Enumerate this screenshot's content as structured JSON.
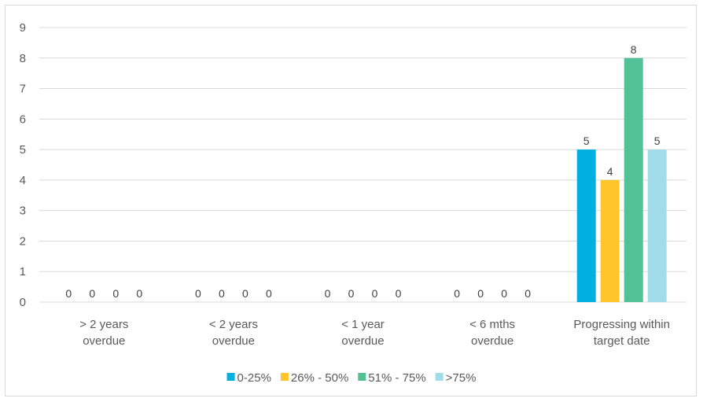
{
  "chart_data": {
    "type": "bar",
    "title": "",
    "xlabel": "",
    "ylabel": "",
    "ylim": [
      0,
      9
    ],
    "yticks": [
      0,
      1,
      2,
      3,
      4,
      5,
      6,
      7,
      8,
      9
    ],
    "grid": true,
    "legend_position": "bottom",
    "categories": [
      [
        "> 2 years",
        "overdue"
      ],
      [
        "< 2 years",
        "overdue"
      ],
      [
        "< 1 year",
        "overdue"
      ],
      [
        "< 6 mths",
        "overdue"
      ],
      [
        "Progressing within",
        "target date"
      ]
    ],
    "series": [
      {
        "name": "0-25%",
        "color": "#00B0E0",
        "values": [
          0,
          0,
          0,
          0,
          5
        ]
      },
      {
        "name": "26% - 50%",
        "color": "#FFC52A",
        "values": [
          0,
          0,
          0,
          0,
          4
        ]
      },
      {
        "name": "51% - 75%",
        "color": "#52C196",
        "values": [
          0,
          0,
          0,
          0,
          8
        ]
      },
      {
        "name": ">75%",
        "color": "#A2DCEB",
        "values": [
          0,
          0,
          0,
          0,
          5
        ]
      }
    ]
  }
}
